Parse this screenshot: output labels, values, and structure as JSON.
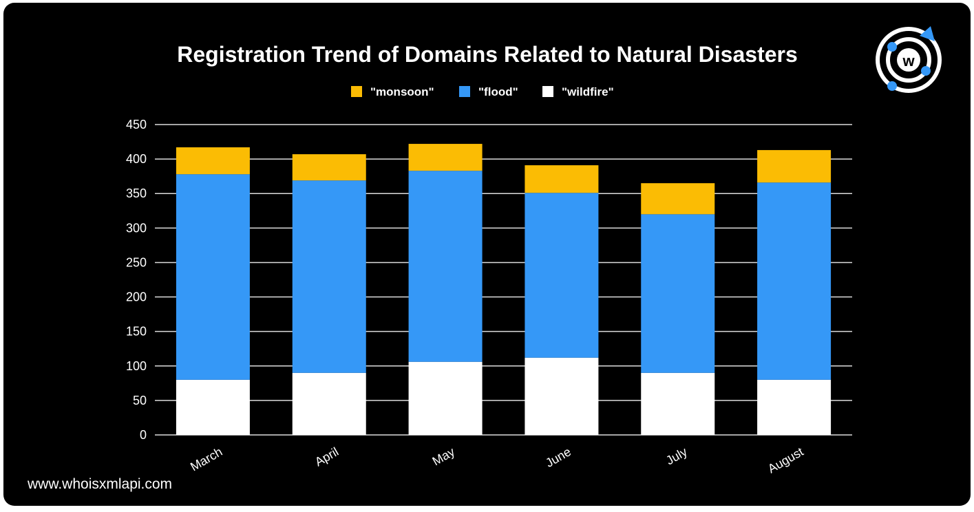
{
  "chart_data": {
    "type": "stacked_bar",
    "title": "Registration Trend of Domains Related to Natural Disasters",
    "categories": [
      "March",
      "April",
      "May",
      "June",
      "July",
      "August"
    ],
    "series": [
      {
        "name": "\"monsoon\"",
        "color": "#fbbc04",
        "values": [
          39,
          38,
          39,
          40,
          45,
          47
        ]
      },
      {
        "name": "\"flood\"",
        "color": "#3598f7",
        "values": [
          298,
          279,
          277,
          239,
          230,
          286
        ]
      },
      {
        "name": "\"wildfire\"",
        "color": "#ffffff",
        "values": [
          80,
          90,
          106,
          112,
          90,
          80
        ]
      }
    ],
    "ylim": [
      0,
      450
    ],
    "yticks": [
      0,
      50,
      100,
      150,
      200,
      250,
      300,
      350,
      400,
      450
    ],
    "grid": true,
    "legend": "top",
    "footer": "www.whoisxmlapi.com"
  }
}
